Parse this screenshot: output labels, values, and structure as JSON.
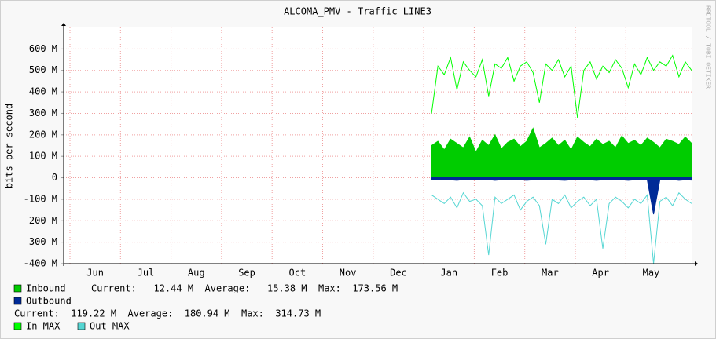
{
  "chart_data": {
    "type": "line",
    "title": "ALCOMA_PMV - Traffic LINE3",
    "y_label": "bits per second",
    "side_note": "RRDTOOL / TOBI OETIKER",
    "x_labels": [
      "Jun",
      "Jul",
      "Aug",
      "Sep",
      "Oct",
      "Nov",
      "Dec",
      "Jan",
      "Feb",
      "Mar",
      "Apr",
      "May"
    ],
    "ylim": [
      -400,
      700
    ],
    "yticks": [
      {
        "value": -400,
        "label": "-400 M"
      },
      {
        "value": -300,
        "label": "-300 M"
      },
      {
        "value": -200,
        "label": "-200 M"
      },
      {
        "value": -100,
        "label": "-100 M"
      },
      0,
      {
        "value": 100,
        "label": "100 M"
      },
      {
        "value": 200,
        "label": "200 M"
      },
      {
        "value": 300,
        "label": "300 M"
      },
      {
        "value": 400,
        "label": "400 M"
      },
      {
        "value": 500,
        "label": "500 M"
      },
      {
        "value": 600,
        "label": "600 M"
      }
    ],
    "grid": true,
    "series": [
      {
        "name": "Inbound",
        "color": "#00cc00",
        "style": "area",
        "values": [
          null,
          null,
          null,
          null,
          null,
          null,
          null,
          null,
          null,
          null,
          null,
          null,
          null,
          null,
          null,
          null,
          null,
          null,
          null,
          null,
          null,
          null,
          null,
          null,
          null,
          null,
          null,
          null,
          null,
          null,
          null,
          null,
          null,
          null,
          null,
          null,
          null,
          null,
          null,
          null,
          null,
          null,
          null,
          null,
          null,
          null,
          null,
          null,
          null,
          null,
          null,
          null,
          null,
          null,
          null,
          null,
          null,
          null,
          150,
          170,
          130,
          180,
          160,
          140,
          190,
          120,
          175,
          150,
          200,
          135,
          165,
          180,
          145,
          170,
          230,
          140,
          160,
          185,
          150,
          175,
          130,
          190,
          165,
          145,
          180,
          155,
          170,
          140,
          195,
          160,
          175,
          150,
          185,
          165,
          140,
          180,
          170,
          155,
          190,
          160
        ]
      },
      {
        "name": "Outbound",
        "color": "#002a97",
        "style": "area",
        "values": [
          null,
          null,
          null,
          null,
          null,
          null,
          null,
          null,
          null,
          null,
          null,
          null,
          null,
          null,
          null,
          null,
          null,
          null,
          null,
          null,
          null,
          null,
          null,
          null,
          null,
          null,
          null,
          null,
          null,
          null,
          null,
          null,
          null,
          null,
          null,
          null,
          null,
          null,
          null,
          null,
          null,
          null,
          null,
          null,
          null,
          null,
          null,
          null,
          null,
          null,
          null,
          null,
          null,
          null,
          null,
          null,
          null,
          null,
          -10,
          -9,
          -11,
          -10,
          -12,
          -9,
          -10,
          -11,
          -10,
          -9,
          -12,
          -10,
          -11,
          -9,
          -10,
          -12,
          -10,
          -11,
          -9,
          -10,
          -11,
          -12,
          -10,
          -9,
          -11,
          -10,
          -12,
          -10,
          -9,
          -11,
          -10,
          -12,
          -10,
          -11,
          -9,
          -170,
          -10,
          -11,
          -9,
          -12,
          -10,
          -11
        ]
      },
      {
        "name": "In MAX",
        "color": "#00ff00",
        "style": "line",
        "values": [
          null,
          null,
          null,
          null,
          null,
          null,
          null,
          null,
          null,
          null,
          null,
          null,
          null,
          null,
          null,
          null,
          null,
          null,
          null,
          null,
          null,
          null,
          null,
          null,
          null,
          null,
          null,
          null,
          null,
          null,
          null,
          null,
          null,
          null,
          null,
          null,
          null,
          null,
          null,
          null,
          null,
          null,
          null,
          null,
          null,
          null,
          null,
          null,
          null,
          null,
          null,
          null,
          null,
          null,
          null,
          null,
          null,
          null,
          300,
          520,
          480,
          560,
          410,
          540,
          500,
          470,
          550,
          380,
          530,
          510,
          560,
          450,
          520,
          540,
          490,
          350,
          530,
          500,
          550,
          470,
          520,
          280,
          500,
          540,
          460,
          520,
          490,
          550,
          510,
          420,
          530,
          480,
          560,
          500,
          540,
          520,
          570,
          470,
          540,
          500
        ]
      },
      {
        "name": "Out MAX",
        "color": "#55d6d3",
        "style": "line",
        "values": [
          null,
          null,
          null,
          null,
          null,
          null,
          null,
          null,
          null,
          null,
          null,
          null,
          null,
          null,
          null,
          null,
          null,
          null,
          null,
          null,
          null,
          null,
          null,
          null,
          null,
          null,
          null,
          null,
          null,
          null,
          null,
          null,
          null,
          null,
          null,
          null,
          null,
          null,
          null,
          null,
          null,
          null,
          null,
          null,
          null,
          null,
          null,
          null,
          null,
          null,
          null,
          null,
          null,
          null,
          null,
          null,
          null,
          null,
          -80,
          -100,
          -120,
          -90,
          -140,
          -70,
          -110,
          -100,
          -130,
          -360,
          -90,
          -120,
          -100,
          -80,
          -150,
          -110,
          -90,
          -130,
          -310,
          -100,
          -120,
          -80,
          -140,
          -110,
          -90,
          -130,
          -100,
          -330,
          -120,
          -90,
          -110,
          -140,
          -100,
          -120,
          -80,
          -400,
          -110,
          -90,
          -130,
          -70,
          -100,
          -120
        ]
      }
    ],
    "legend_stats": [
      "Current:   12.44 M  Average:   15.38 M  Max:  173.56 M",
      "Current:  119.22 M  Average:  180.94 M  Max:  314.73 M"
    ]
  }
}
